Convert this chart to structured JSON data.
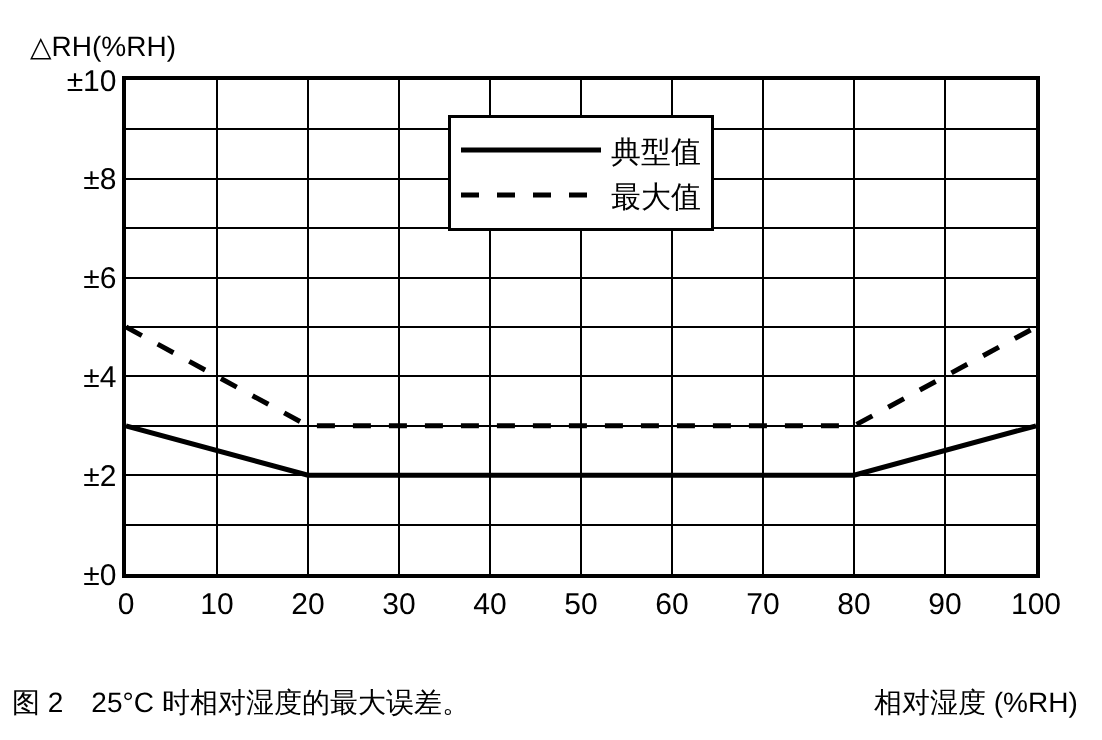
{
  "chart_data": {
    "type": "line",
    "ylabel": "△RH(%RH)",
    "xlabel": "相对湿度 (%RH)",
    "annotations": [
      "图 2　25°C 时相对湿度的最大误差。"
    ],
    "x": [
      0,
      20,
      80,
      100
    ],
    "series": [
      {
        "name": "典型值",
        "color": "#000000",
        "values": [
          3,
          2,
          2,
          3
        ],
        "line_style": "solid"
      },
      {
        "name": "最大值",
        "color": "#000000",
        "values": [
          5,
          3,
          3,
          5
        ],
        "line_style": "dashed"
      }
    ],
    "xlim": [
      0,
      100
    ],
    "xticks": [
      0,
      10,
      20,
      30,
      40,
      50,
      60,
      70,
      80,
      90,
      100
    ],
    "ylim": [
      0,
      10
    ],
    "yticks": [
      {
        "value": 0,
        "label": "±0"
      },
      {
        "value": 1,
        "label": null
      },
      {
        "value": 2,
        "label": "±2"
      },
      {
        "value": 3,
        "label": null
      },
      {
        "value": 4,
        "label": "±4"
      },
      {
        "value": 5,
        "label": null
      },
      {
        "value": 6,
        "label": "±6"
      },
      {
        "value": 7,
        "label": null
      },
      {
        "value": 8,
        "label": "±8"
      },
      {
        "value": 9,
        "label": null
      },
      {
        "value": 10,
        "label": "±10"
      }
    ],
    "grid": true,
    "legend": "top",
    "marker": "none"
  }
}
